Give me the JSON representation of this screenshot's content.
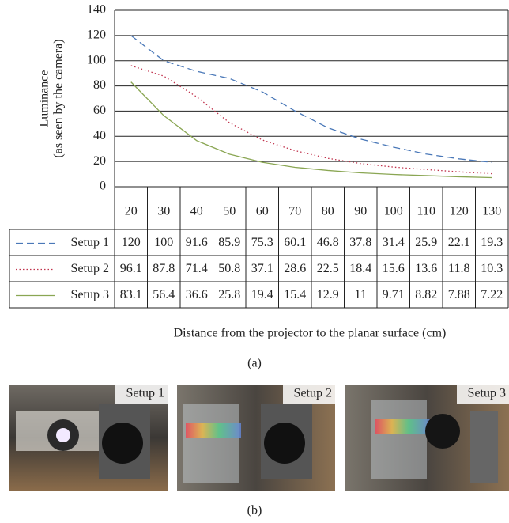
{
  "chart_data": {
    "type": "line",
    "y_label": [
      "Luminance",
      "(as seen by the camera)"
    ],
    "x_label": "Distance from the projector to the planar surface (cm)",
    "caption": "(a)",
    "categories": [
      20,
      30,
      40,
      50,
      60,
      70,
      80,
      90,
      100,
      110,
      120,
      130
    ],
    "series": [
      {
        "name": "Setup 1",
        "color": "#4a78b8",
        "style": "dashed",
        "values": [
          120,
          100,
          91.6,
          85.9,
          75.3,
          60.1,
          46.8,
          37.8,
          31.4,
          25.9,
          22.1,
          19.3
        ]
      },
      {
        "name": "Setup 2",
        "color": "#c0334d",
        "style": "dotted",
        "values": [
          96.1,
          87.8,
          71.4,
          50.8,
          37.1,
          28.6,
          22.5,
          18.4,
          15.6,
          13.6,
          11.8,
          10.3
        ]
      },
      {
        "name": "Setup 3",
        "color": "#8aa653",
        "style": "solid",
        "values": [
          83.1,
          56.4,
          36.6,
          25.8,
          19.4,
          15.4,
          12.9,
          11,
          9.71,
          8.82,
          7.88,
          7.22
        ]
      }
    ],
    "ylim": [
      0,
      140
    ],
    "yticks": [
      0,
      20,
      40,
      60,
      80,
      100,
      120,
      140
    ],
    "grid": true
  },
  "photos": {
    "labels": [
      "Setup 1",
      "Setup 2",
      "Setup 3"
    ],
    "caption": "(b)"
  }
}
